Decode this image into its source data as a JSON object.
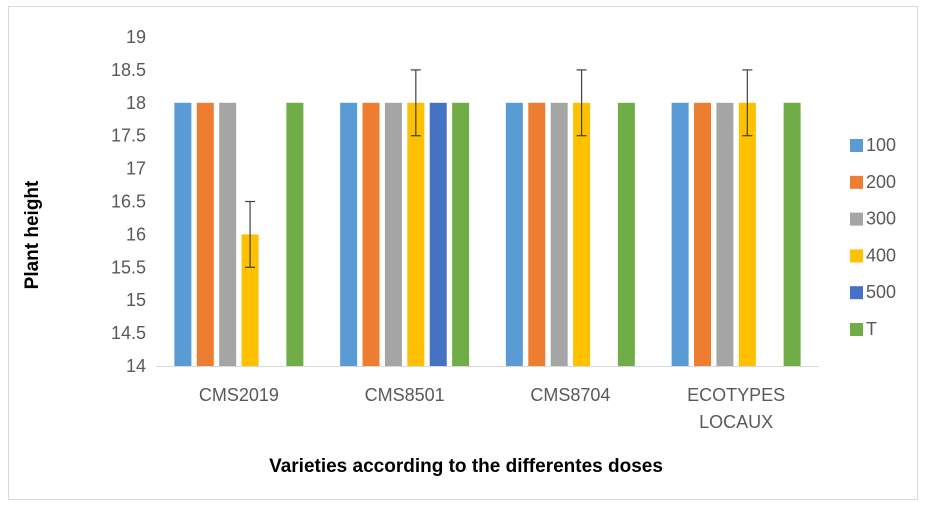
{
  "chart_data": {
    "type": "bar",
    "categories": [
      [
        "CMS2019"
      ],
      [
        "CMS8501"
      ],
      [
        "CMS8704"
      ],
      [
        "ECOTYPES",
        "LOCAUX"
      ]
    ],
    "series": [
      {
        "name": "100",
        "color": "#5b9bd5",
        "values": [
          18,
          18,
          18,
          18
        ],
        "errors": [
          0,
          0,
          0,
          0
        ]
      },
      {
        "name": "200",
        "color": "#ed7d31",
        "values": [
          18,
          18,
          18,
          18
        ],
        "errors": [
          0,
          0,
          0,
          0
        ]
      },
      {
        "name": "300",
        "color": "#a5a5a5",
        "values": [
          18,
          18,
          18,
          18
        ],
        "errors": [
          0,
          0,
          0,
          0
        ]
      },
      {
        "name": "400",
        "color": "#ffc000",
        "values": [
          16,
          18,
          18,
          18
        ],
        "errors": [
          0.5,
          0.5,
          0.5,
          0.5
        ]
      },
      {
        "name": "500",
        "color": "#4472c4",
        "values": [
          null,
          18,
          null,
          null
        ],
        "errors": [
          0,
          0,
          0,
          0
        ]
      },
      {
        "name": "T",
        "color": "#70ad47",
        "values": [
          18,
          18,
          18,
          18
        ],
        "errors": [
          0,
          0,
          0,
          0
        ]
      }
    ],
    "xlabel": "Varieties according  to the differentes doses",
    "ylabel": "Plant height",
    "ylim": [
      14,
      19
    ],
    "yticks": [
      "14",
      "14.5",
      "15",
      "15.5",
      "16",
      "16.5",
      "17",
      "17.5",
      "18",
      "18.5",
      "19"
    ],
    "grid": false,
    "legend_position": "right"
  }
}
